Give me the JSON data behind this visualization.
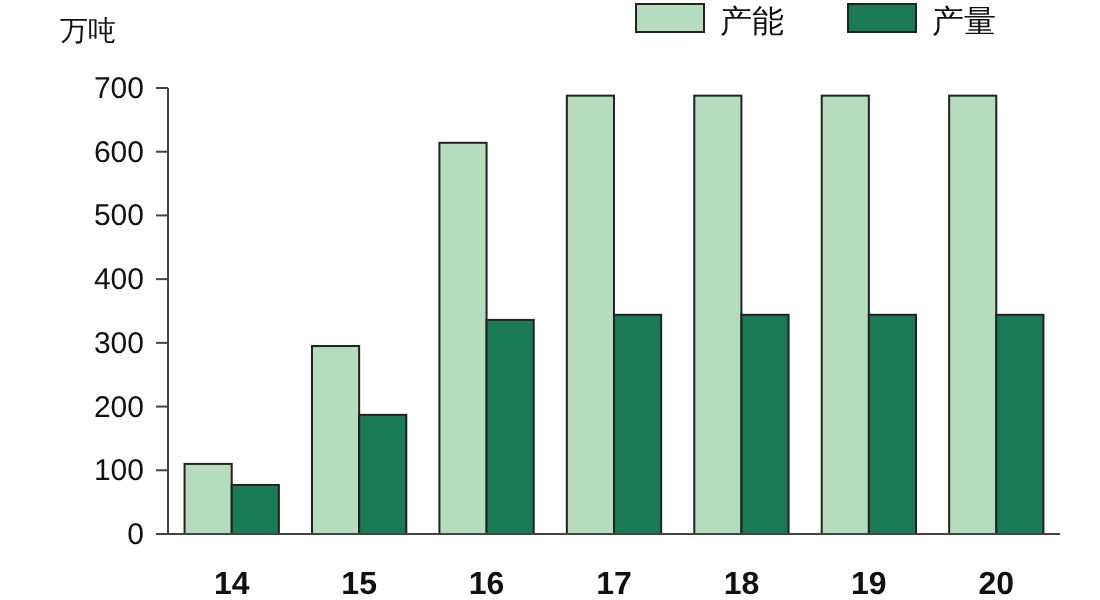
{
  "chart_data": {
    "type": "bar",
    "ylabel": "万吨",
    "categories": [
      "14",
      "15",
      "16",
      "17",
      "18",
      "19",
      "20"
    ],
    "series": [
      {
        "name": "产能",
        "color": "#b5dcbe",
        "values": [
          110,
          295,
          614,
          688,
          688,
          688,
          688
        ]
      },
      {
        "name": "产量",
        "color": "#1a7a56",
        "values": [
          77,
          187,
          336,
          344,
          344,
          344,
          344
        ]
      }
    ],
    "ylim": [
      0,
      700
    ],
    "yticks": [
      0,
      100,
      200,
      300,
      400,
      500,
      600,
      700
    ],
    "grid": false,
    "legend": "top right"
  }
}
